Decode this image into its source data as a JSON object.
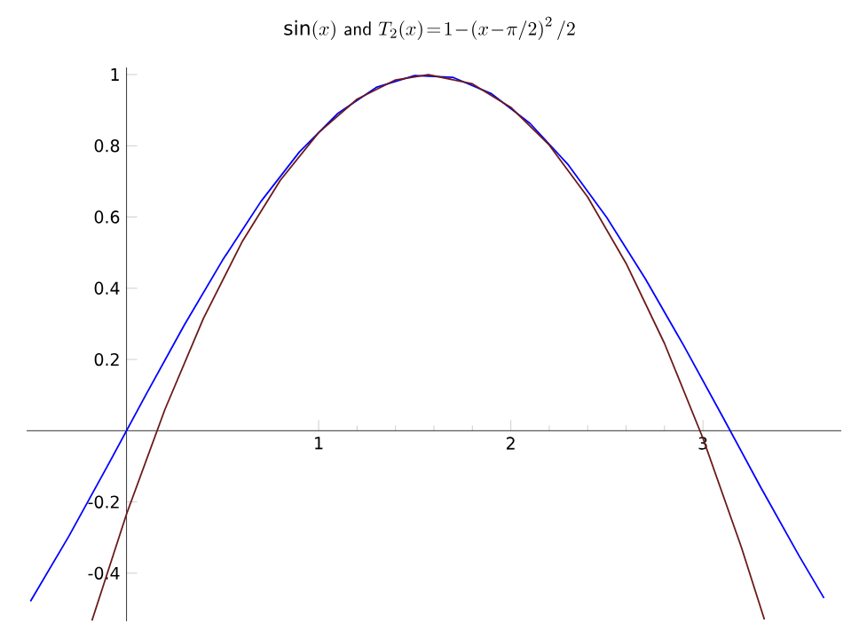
{
  "chart_data": {
    "type": "line",
    "title": "\\sin(x)\\ \\mathsf{and}\\ T_{2}(x)\\!=\\!1\\!-\\!\\left(x\\!-\\!\\pi/2\\right)^{2}/2",
    "xlim": [
      -0.52,
      3.72
    ],
    "ylim": [
      -0.535,
      1.02
    ],
    "xticks": [
      1,
      2,
      3
    ],
    "yticks": [
      -0.4,
      -0.2,
      0.2,
      0.4,
      0.6,
      0.8,
      1
    ],
    "grid": false,
    "marker": "none",
    "line_style": "solid",
    "series": [
      {
        "color": "#0000ff",
        "x": [
          -0.5,
          -0.3,
          -0.1,
          0.1,
          0.3,
          0.5,
          0.7,
          0.9,
          1.1,
          1.3,
          1.5,
          1.7,
          1.9,
          2.1,
          2.3,
          2.5,
          2.7,
          2.9,
          3.1,
          3.3,
          3.5,
          3.63
        ],
        "values": [
          -0.479,
          -0.296,
          -0.1,
          0.1,
          0.296,
          0.479,
          0.644,
          0.783,
          0.891,
          0.964,
          0.997,
          0.992,
          0.946,
          0.863,
          0.746,
          0.598,
          0.427,
          0.239,
          0.042,
          -0.158,
          -0.351,
          -0.47
        ]
      },
      {
        "color": "#6b1a1a",
        "x": [
          -0.18,
          0,
          0.2,
          0.4,
          0.6,
          0.8,
          1.0,
          1.2,
          1.4,
          1.5708,
          1.8,
          2.0,
          2.2,
          2.4,
          2.6,
          2.8,
          3.0,
          3.2,
          3.32
        ],
        "values": [
          -0.533,
          -0.234,
          0.06,
          0.315,
          0.529,
          0.703,
          0.837,
          0.931,
          0.985,
          1,
          0.974,
          0.908,
          0.802,
          0.656,
          0.47,
          0.245,
          -0.021,
          -0.327,
          -0.53
        ]
      }
    ]
  }
}
